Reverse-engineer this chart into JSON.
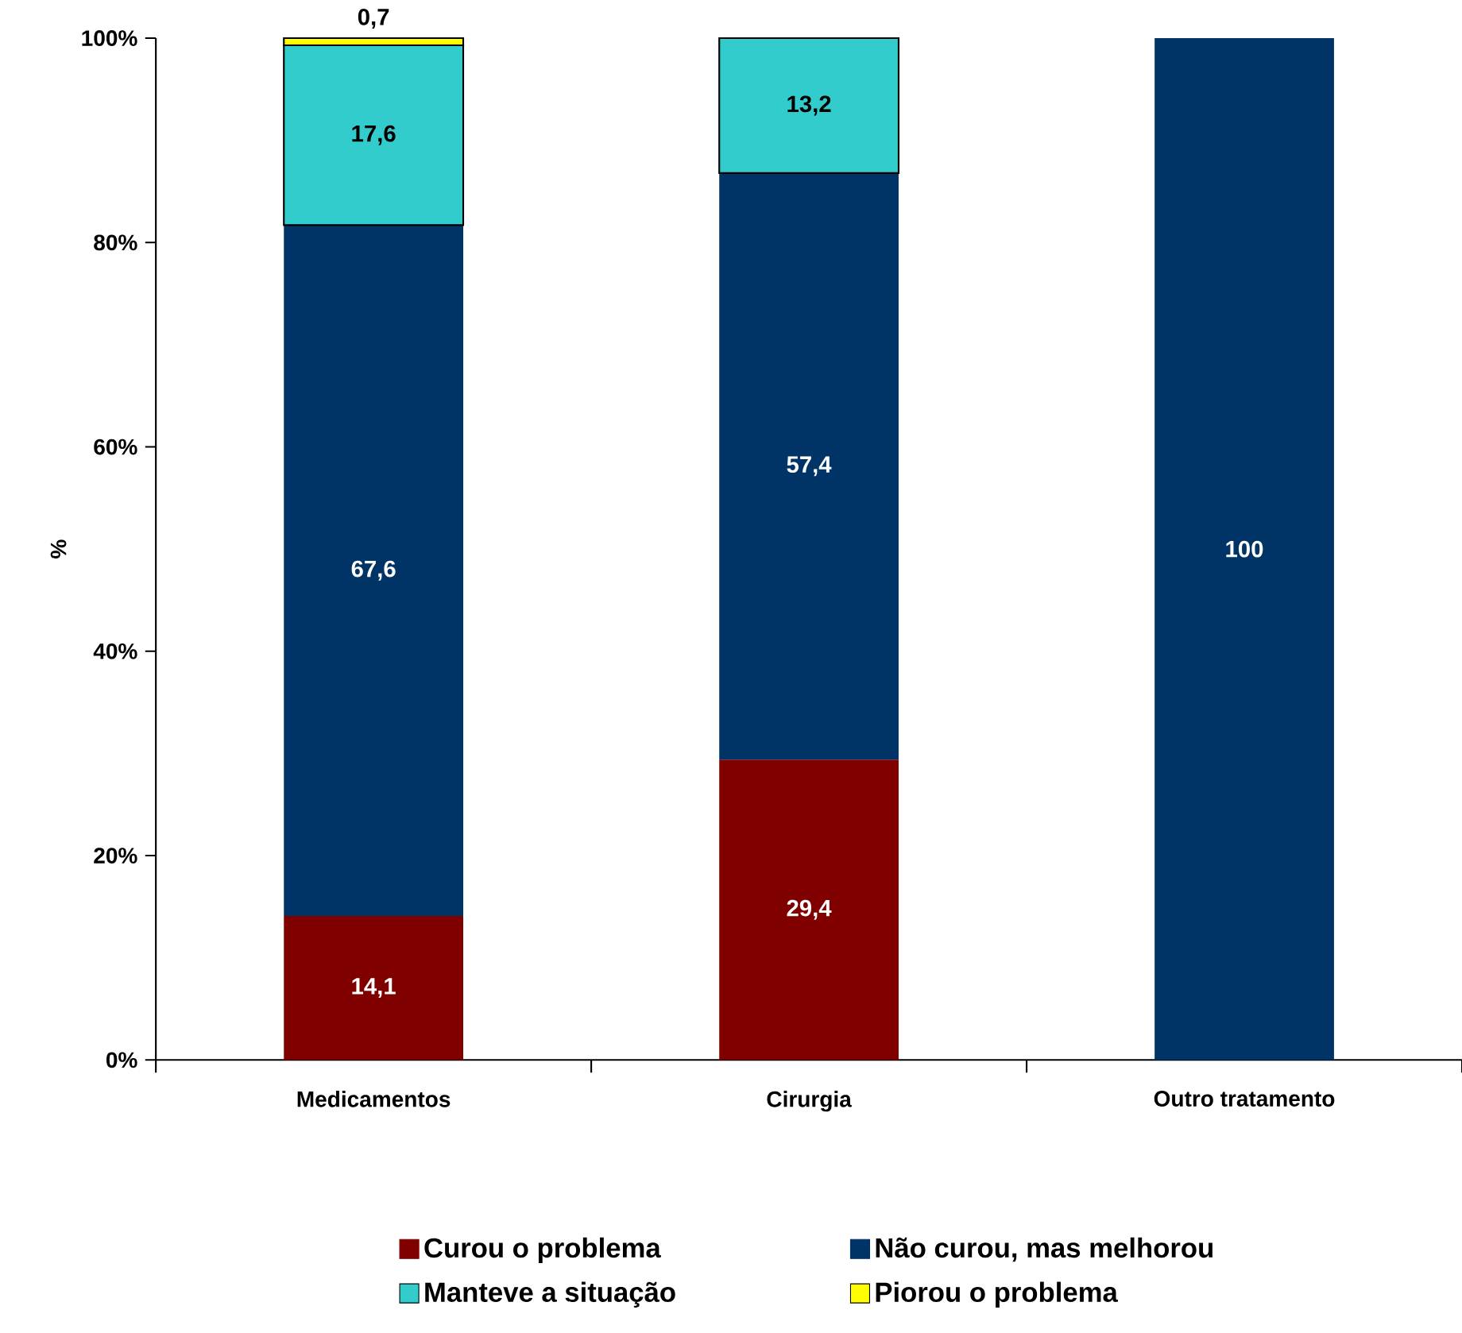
{
  "chart_data": {
    "type": "bar",
    "stacked": true,
    "ylabel": "%",
    "categories": [
      "Medicamentos",
      "Cirurgia",
      "Outro tratamento"
    ],
    "series": [
      {
        "name": "Curou o problema",
        "color": "#800000",
        "values": [
          14.1,
          29.4,
          null
        ],
        "value_labels": [
          "14,1",
          "29,4",
          null
        ]
      },
      {
        "name": "Não curou, mas melhorou",
        "color": "#003366",
        "values": [
          67.6,
          57.4,
          100
        ],
        "value_labels": [
          "67,6",
          "57,4",
          "100"
        ]
      },
      {
        "name": "Manteve a situação",
        "color": "#33cccc",
        "values": [
          17.6,
          13.2,
          null
        ],
        "value_labels": [
          "17,6",
          "13,2",
          null
        ]
      },
      {
        "name": "Piorou o problema",
        "color": "#ffff00",
        "values": [
          0.7,
          null,
          null
        ],
        "value_labels": [
          "0,7",
          null,
          null
        ]
      }
    ],
    "ylim": [
      0,
      100
    ],
    "yticks": [
      {
        "value": 0,
        "label": "0%"
      },
      {
        "value": 20,
        "label": "20%"
      },
      {
        "value": 40,
        "label": "40%"
      },
      {
        "value": 60,
        "label": "60%"
      },
      {
        "value": 80,
        "label": "80%"
      },
      {
        "value": 100,
        "label": "100%"
      }
    ],
    "grid": false,
    "legend": "bottom"
  }
}
